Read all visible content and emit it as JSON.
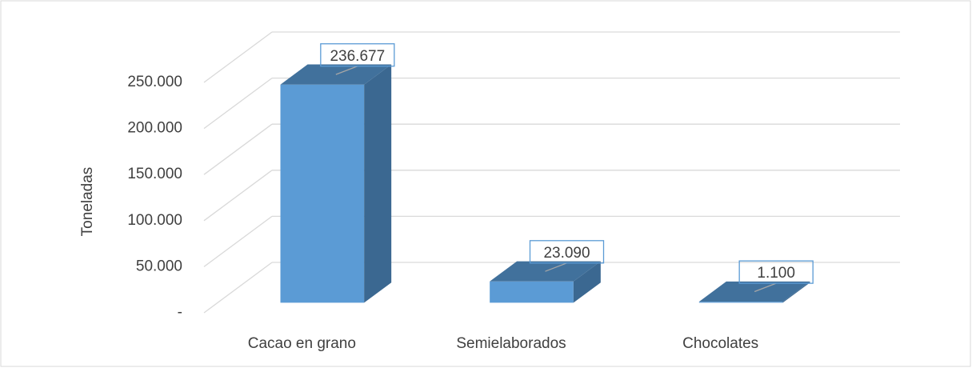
{
  "chart_data": {
    "type": "bar3d",
    "y_axis_label": "Toneladas",
    "categories": [
      "Cacao en grano",
      "Semielaborados",
      "Chocolates"
    ],
    "values": [
      236677,
      23090,
      1100
    ],
    "value_labels": [
      "236.677",
      "23.090",
      "1.100"
    ],
    "color": "#5b9bd5",
    "ylim": [
      0,
      250000
    ],
    "yticks": [
      {
        "value": 0,
        "label": "-"
      },
      {
        "value": 50000,
        "label": "50.000"
      },
      {
        "value": 100000,
        "label": "100.000"
      },
      {
        "value": 150000,
        "label": "150.000"
      },
      {
        "value": 200000,
        "label": "200.000"
      },
      {
        "value": 250000,
        "label": "250.000"
      }
    ],
    "grid": true
  }
}
